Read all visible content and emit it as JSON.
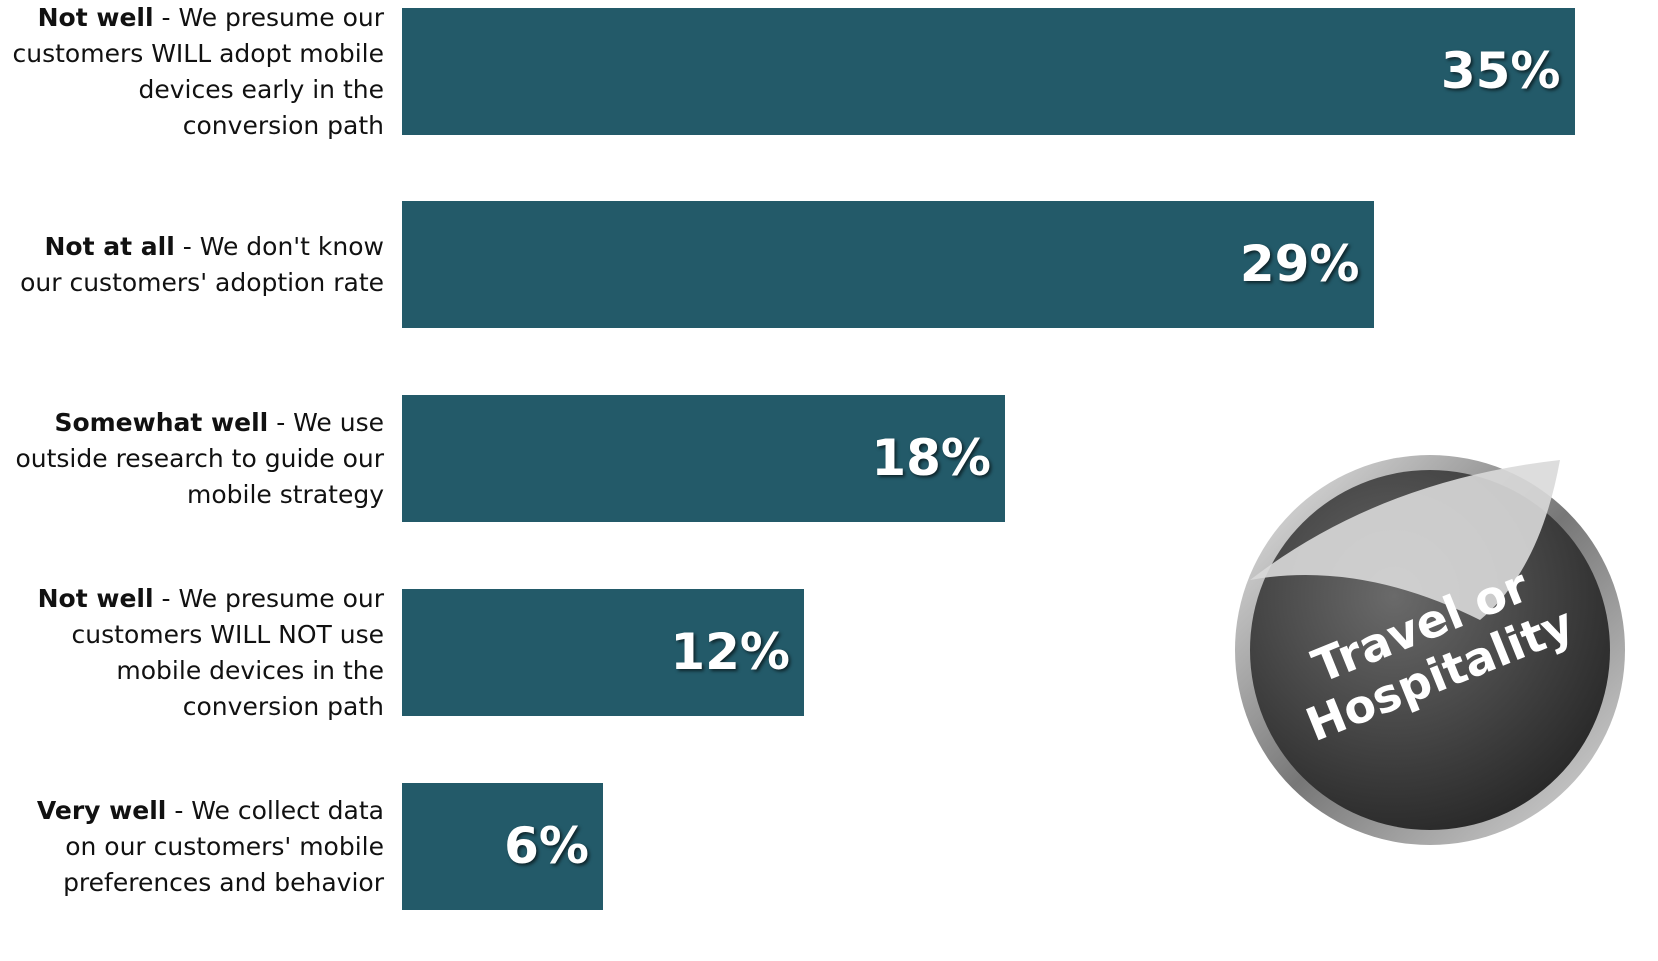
{
  "chart_data": {
    "type": "barh",
    "categories": [
      "Not well - We presume our customers WILL adopt mobile devices early in the conversion path",
      "Not at all - We don't know our customers' adoption rate",
      "Somewhat well - We use outside research to guide our mobile strategy",
      "Not well - We presume our customers WILL NOT use mobile devices in the conversion path",
      "Very well - We collect data on our customers' mobile preferences and behavior"
    ],
    "values": [
      35,
      29,
      18,
      12,
      6
    ],
    "value_labels": [
      "35%",
      "29%",
      "18%",
      "12%",
      "6%"
    ],
    "color": "#235a69",
    "badge": "Travel or Hospitality"
  }
}
